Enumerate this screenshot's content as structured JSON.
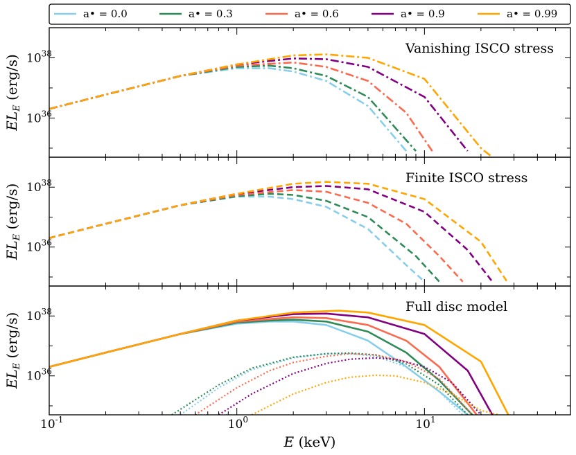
{
  "chart_data": {
    "type": "line",
    "xlabel": "E (keV)",
    "ylabel": "EL_E (erg/s)",
    "xscale": "log",
    "yscale": "log",
    "xlim": [
      0.1,
      60
    ],
    "ylim": [
      5e+34,
      1e+39
    ],
    "x_tick_labels": [
      "10^-1",
      "10^0",
      "10^1"
    ],
    "y_tick_labels": [
      "10^36",
      "10^38"
    ],
    "legend": {
      "placement": "top",
      "entries": [
        {
          "label": "a• = 0.0",
          "color": "#87ceeb"
        },
        {
          "label": "a• = 0.3",
          "color": "#2e8b57"
        },
        {
          "label": "a• = 0.6",
          "color": "#fa6a4f"
        },
        {
          "label": "a• = 0.9",
          "color": "#800080"
        },
        {
          "label": "a• = 0.99",
          "color": "#ffa500"
        }
      ]
    },
    "panels": [
      {
        "label": "Vanishing ISCO stress",
        "line_style": "dashdot",
        "series": [
          {
            "name": "a• = 0.0",
            "color": "#87ceeb",
            "x": [
              0.1,
              0.2,
              0.5,
              1.0,
              1.5,
              2.0,
              3.0,
              5.0,
              8.0
            ],
            "y": [
              2e+36,
              6e+36,
              2.5e+37,
              4.5e+37,
              4.5e+37,
              3.5e+37,
              1.7e+37,
              2.5e+36,
              8e+34
            ]
          },
          {
            "name": "a• = 0.3",
            "color": "#2e8b57",
            "x": [
              0.1,
              0.2,
              0.5,
              1.0,
              1.5,
              2.0,
              3.0,
              5.0,
              9.0
            ],
            "y": [
              2e+36,
              6e+36,
              2.5e+37,
              5e+37,
              5.5e+37,
              4.5e+37,
              2.5e+37,
              5e+36,
              8e+34
            ]
          },
          {
            "name": "a• = 0.6",
            "color": "#fa6a4f",
            "x": [
              0.1,
              0.2,
              0.5,
              1.0,
              2.0,
              3.0,
              5.0,
              8.0,
              11.0
            ],
            "y": [
              2e+36,
              6e+36,
              2.5e+37,
              5.5e+37,
              7e+37,
              5e+37,
              1.7e+37,
              1.5e+36,
              8e+34
            ]
          },
          {
            "name": "a• = 0.9",
            "color": "#800080",
            "x": [
              0.1,
              0.2,
              0.5,
              1.0,
              2.0,
              3.0,
              5.0,
              10.0,
              17.0
            ],
            "y": [
              2e+36,
              6e+36,
              2.5e+37,
              6e+37,
              9.5e+37,
              9e+37,
              5e+37,
              5e+36,
              8e+34
            ]
          },
          {
            "name": "a• = 0.99",
            "color": "#ffa500",
            "x": [
              0.1,
              0.2,
              0.5,
              1.0,
              2.0,
              3.0,
              5.0,
              10.0,
              20.0,
              23.0
            ],
            "y": [
              2e+36,
              6e+36,
              2.5e+37,
              6e+37,
              1.2e+38,
              1.3e+38,
              1e+38,
              2e+37,
              1e+35,
              5e+34
            ]
          }
        ]
      },
      {
        "label": "Finite ISCO stress",
        "line_style": "dashed",
        "series": [
          {
            "name": "a• = 0.0",
            "color": "#87ceeb",
            "x": [
              0.1,
              0.2,
              0.5,
              1.0,
              1.5,
              2.0,
              3.0,
              5.0,
              8.0,
              10.0
            ],
            "y": [
              2e+36,
              6e+36,
              2.5e+37,
              4.8e+37,
              4.8e+37,
              4e+37,
              2.2e+37,
              4e+36,
              2.5e+35,
              7e+34
            ]
          },
          {
            "name": "a• = 0.3",
            "color": "#2e8b57",
            "x": [
              0.1,
              0.2,
              0.5,
              1.0,
              1.5,
              2.0,
              3.0,
              5.0,
              9.0,
              12.0
            ],
            "y": [
              2e+36,
              6e+36,
              2.5e+37,
              5e+37,
              6e+37,
              5.5e+37,
              3.5e+37,
              1e+37,
              5e+35,
              7e+34
            ]
          },
          {
            "name": "a• = 0.6",
            "color": "#fa6a4f",
            "x": [
              0.1,
              0.2,
              0.5,
              1.0,
              2.0,
              3.0,
              5.0,
              8.0,
              12.0,
              16.0
            ],
            "y": [
              2e+36,
              6e+36,
              2.5e+37,
              5.5e+37,
              8e+37,
              7e+37,
              3e+37,
              6e+36,
              5e+35,
              7e+34
            ]
          },
          {
            "name": "a• = 0.9",
            "color": "#800080",
            "x": [
              0.1,
              0.2,
              0.5,
              1.0,
              2.0,
              3.0,
              5.0,
              10.0,
              17.0,
              23.0
            ],
            "y": [
              2e+36,
              6e+36,
              2.5e+37,
              6e+37,
              1e+38,
              1.1e+38,
              8.5e+37,
              1.5e+37,
              8e+35,
              7e+34
            ]
          },
          {
            "name": "a• = 0.99",
            "color": "#ffa500",
            "x": [
              0.1,
              0.2,
              0.5,
              1.0,
              2.0,
              3.0,
              5.0,
              10.0,
              20.0,
              28.0
            ],
            "y": [
              2e+36,
              6e+36,
              2.5e+37,
              6e+37,
              1.3e+38,
              1.5e+38,
              1.3e+38,
              4e+37,
              1.5e+36,
              6e+34
            ]
          }
        ]
      },
      {
        "label": "Full disc model",
        "line_style": "solid",
        "series": [
          {
            "name": "a• = 0.0",
            "color": "#87ceeb",
            "x": [
              0.1,
              0.2,
              0.5,
              1.0,
              1.5,
              2.0,
              3.0,
              5.0,
              8.0,
              12.0,
              17.0
            ],
            "y": [
              2e+36,
              6e+36,
              2.5e+37,
              5.5e+37,
              6.5e+37,
              6.5e+37,
              5e+37,
              1.5e+37,
              2e+36,
              3e+35,
              5e+34
            ]
          },
          {
            "name": "a• = 0.3",
            "color": "#2e8b57",
            "x": [
              0.1,
              0.2,
              0.5,
              1.0,
              1.5,
              2.0,
              3.0,
              5.0,
              8.0,
              12.0,
              18.0
            ],
            "y": [
              2e+36,
              6e+36,
              2.5e+37,
              6e+37,
              7e+37,
              7.5e+37,
              6.5e+37,
              3e+37,
              6e+36,
              7e+35,
              5e+34
            ]
          },
          {
            "name": "a• = 0.6",
            "color": "#fa6a4f",
            "x": [
              0.1,
              0.2,
              0.5,
              1.0,
              2.0,
              3.0,
              5.0,
              8.0,
              12.0,
              19.0
            ],
            "y": [
              2e+36,
              6e+36,
              2.5e+37,
              6.5e+37,
              9e+37,
              8.5e+37,
              5e+37,
              1.5e+37,
              2e+36,
              5e+34
            ]
          },
          {
            "name": "a• = 0.9",
            "color": "#800080",
            "x": [
              0.1,
              0.2,
              0.5,
              1.0,
              2.0,
              3.0,
              5.0,
              10.0,
              17.0,
              23.0
            ],
            "y": [
              2e+36,
              6e+36,
              2.5e+37,
              7e+37,
              1.15e+38,
              1.2e+38,
              9e+37,
              2.5e+37,
              1.5e+36,
              5e+34
            ]
          },
          {
            "name": "a• = 0.99",
            "color": "#ffa500",
            "x": [
              0.1,
              0.2,
              0.5,
              1.0,
              2.0,
              3.5,
              5.0,
              10.0,
              20.0,
              28.0
            ],
            "y": [
              2e+36,
              6e+36,
              2.5e+37,
              7e+37,
              1.3e+38,
              1.5e+38,
              1.3e+38,
              5e+37,
              3e+36,
              5e+34
            ]
          },
          {
            "name": "a• = 0.0 (dotted)",
            "color": "#87ceeb",
            "dotted": true,
            "x": [
              0.5,
              0.8,
              1.2,
              2.0,
              3.0,
              4.0,
              5.5,
              8.0,
              12.0,
              16.0
            ],
            "y": [
              5e+34,
              4e+35,
              1.6e+36,
              4e+36,
              5.5e+36,
              5.5e+36,
              4.5e+36,
              2e+36,
              3e+35,
              5e+34
            ]
          },
          {
            "name": "a• = 0.3 (dotted)",
            "color": "#2e8b57",
            "dotted": true,
            "x": [
              0.45,
              0.8,
              1.2,
              2.0,
              3.0,
              4.0,
              5.5,
              8.0,
              12.0,
              17.0
            ],
            "y": [
              5e+34,
              5e+35,
              1.8e+36,
              4.2e+36,
              5.5e+36,
              5.8e+36,
              5e+36,
              2.5e+36,
              5e+35,
              5e+34
            ]
          },
          {
            "name": "a• = 0.6 (dotted)",
            "color": "#fa6a4f",
            "dotted": true,
            "x": [
              0.6,
              1.0,
              1.5,
              2.0,
              3.0,
              4.0,
              5.5,
              8.0,
              12.0,
              18.0
            ],
            "y": [
              5e+34,
              4e+35,
              1.5e+36,
              2.8e+36,
              4.5e+36,
              5.5e+36,
              5e+36,
              3e+36,
              8e+35,
              5e+34
            ]
          },
          {
            "name": "a• = 0.9 (dotted)",
            "color": "#800080",
            "dotted": true,
            "x": [
              0.8,
              1.2,
              2.0,
              3.0,
              4.0,
              5.5,
              7.0,
              10.0,
              14.0,
              20.0
            ],
            "y": [
              5e+34,
              2.5e+35,
              1.2e+36,
              2.6e+36,
              3.6e+36,
              4e+36,
              3.6e+36,
              2e+36,
              6e+35,
              5e+34
            ]
          },
          {
            "name": "a• = 0.99 (dotted)",
            "color": "#ffa500",
            "dotted": true,
            "x": [
              1.2,
              2.0,
              3.0,
              4.0,
              5.5,
              7.0,
              10.0,
              14.0,
              20.0,
              25.0
            ],
            "y": [
              5e+34,
              2.5e+35,
              6e+35,
              9e+35,
              1.05e+36,
              1e+36,
              6e+35,
              2.5e+35,
              7e+34,
              5e+34
            ]
          }
        ]
      }
    ]
  }
}
